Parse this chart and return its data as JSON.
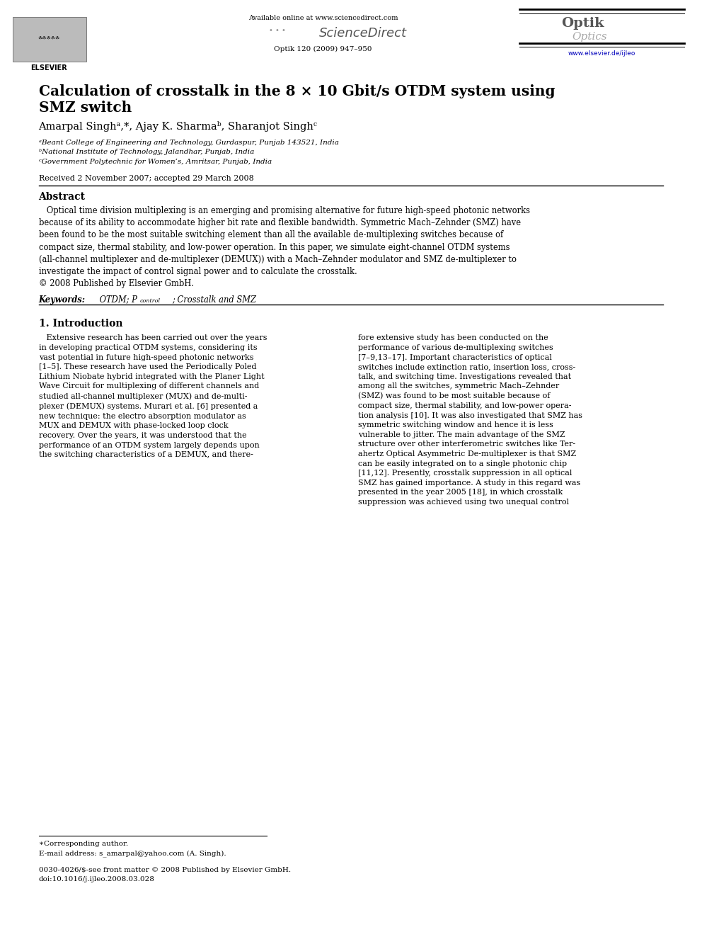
{
  "bg_color": "#ffffff",
  "title_line1": "Calculation of crosstalk in the 8 × 10 Gbit/s OTDM system using",
  "title_line2": "SMZ switch",
  "authors": "Amarpal Singhᵃ,*, Ajay K. Sharmaᵇ, Sharanjot Singhᶜ",
  "affil_a": "ᵃBeant College of Engineering and Technology, Gurdaspur, Punjab 143521, India",
  "affil_b": "ᵇNational Institute of Technology, Jalandhar, Punjab, India",
  "affil_c": "ᶜGovernment Polytechnic for Women’s, Amritsar, Punjab, India",
  "received": "Received 2 November 2007; accepted 29 March 2008",
  "abstract_title": "Abstract",
  "abstract_text": "   Optical time division multiplexing is an emerging and promising alternative for future high-speed photonic networks because of its ability to accommodate higher bit rate and flexible bandwidth. Symmetric Mach–Zehnder (SMZ) have been found to be the most suitable switching element than all the available de-multiplexing switches because of compact size, thermal stability, and low-power operation. In this paper, we simulate eight-channel OTDM systems (all-channel multiplexer and de-multiplexer (DEMUX)) with a Mach–Zehnder modulator and SMZ de-multiplexer to investigate the impact of control signal power and to calculate the crosstalk.\n© 2008 Published by Elsevier GmbH.",
  "keywords_label": "Keywords:",
  "keywords_text": " OTDM; P",
  "keywords_subscript": "control",
  "keywords_rest": "; Crosstalk and SMZ",
  "section1_title": "1. Introduction",
  "intro_left": "   Extensive research has been carried out over the years\nin developing practical OTDM systems, considering its\nvast potential in future high-speed photonic networks\n[1–5]. These research have used the Periodically Poled\nLithium Niobate hybrid integrated with the Planer Light\nWave Circuit for multiplexing of different channels and\nstudied all-channel multiplexer (MUX) and de-multi-\nplexer (DEMUX) systems. Murari et al. [6] presented a\nnew technique: the electro absorption modulator as\nMUX and DEMUX with phase-locked loop clock\nrecovery. Over the years, it was understood that the\nperformance of an OTDM system largely depends upon\nthe switching characteristics of a DEMUX, and there-",
  "intro_right": "fore extensive study has been conducted on the\nperformance of various de-multiplexing switches\n[7–9,13–17]. Important characteristics of optical\nswitches include extinction ratio, insertion loss, cross-\ntalk, and switching time. Investigations revealed that\namong all the switches, symmetric Mach–Zehnder\n(SMZ) was found to be most suitable because of\ncompact size, thermal stability, and low-power opera-\ntion analysis [10]. It was also investigated that SMZ has\nsymmetric switching window and hence it is less\nvulnerable to jitter. The main advantage of the SMZ\nstructure over other interferometric switches like Ter-\nahertz Optical Asymmetric De-multiplexer is that SMZ\ncan be easily integrated on to a single photonic chip\n[11,12]. Presently, crosstalk suppression in all optical\nSMZ has gained importance. A study in this regard was\npresented in the year 2005 [18], in which crosstalk\nsuppression was achieved using two unequal control",
  "footer_note": "∗Corresponding author.",
  "footer_email": "E-mail address: s_amarpal@yahoo.com (A. Singh).",
  "footer_line1": "0030-4026/$-see front matter © 2008 Published by Elsevier GmbH.",
  "footer_line2": "doi:10.1016/j.ijleo.2008.03.028",
  "header_available": "Available online at www.sciencedirect.com",
  "header_journal": "Optik 120 (2009) 947–950",
  "header_url": "www.elsevier.de/ijleo"
}
